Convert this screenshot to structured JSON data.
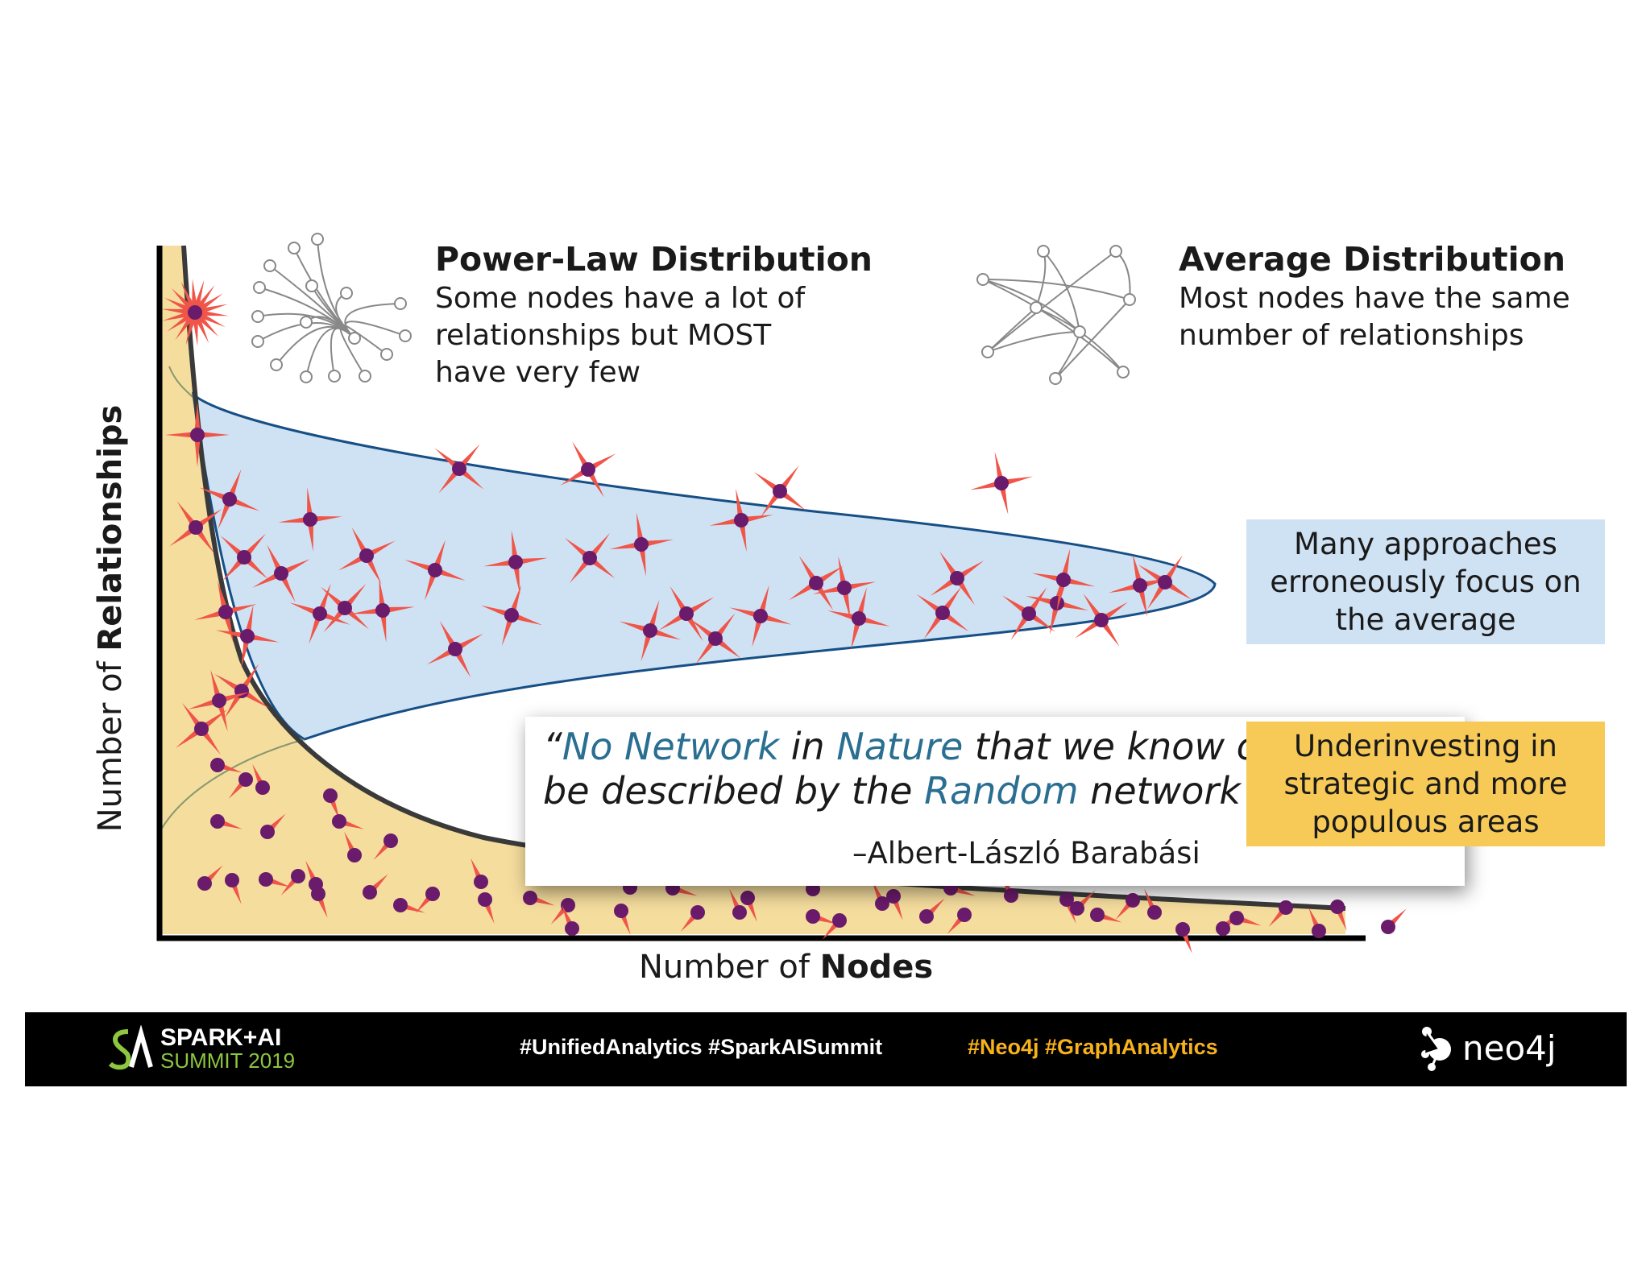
{
  "power_law": {
    "title": "Power-Law Distribution",
    "description": "Some nodes have a lot of relationships but MOST have very few"
  },
  "average": {
    "title": "Average Distribution",
    "description": "Most nodes have the same number of relationships"
  },
  "callouts": {
    "average_focus": "Many approaches erroneously focus on the average",
    "underinvesting": "Underinvesting in strategic and more populous areas"
  },
  "quote": {
    "open": "“",
    "part1": "No Network",
    "part2": " in ",
    "part3": "Nature",
    "part4": " that we know of t",
    "line2_part1": "be described by the ",
    "line2_part2": "Random",
    "line2_part3": " network mo",
    "author": "–Albert-László Barabási"
  },
  "axes": {
    "y_prefix": "Number of ",
    "y_bold": "Relationships",
    "x_prefix": "Number of ",
    "x_bold": "Nodes"
  },
  "footer": {
    "logo_line1": "SPARK+AI",
    "logo_line2": "SUMMIT 2019",
    "hashtags_white": "#UnifiedAnalytics #SparkAISummit",
    "hashtags_yellow": "#Neo4j  #GraphAnalytics",
    "neo4j": "neo4j"
  },
  "colors": {
    "blue_fill": "#cfe2f3",
    "blue_stroke": "#164f86",
    "tan_fill": "#f5dd9e",
    "node": "#6b1b6b",
    "spike": "#ef5548",
    "yellow": "#f7ca57"
  }
}
